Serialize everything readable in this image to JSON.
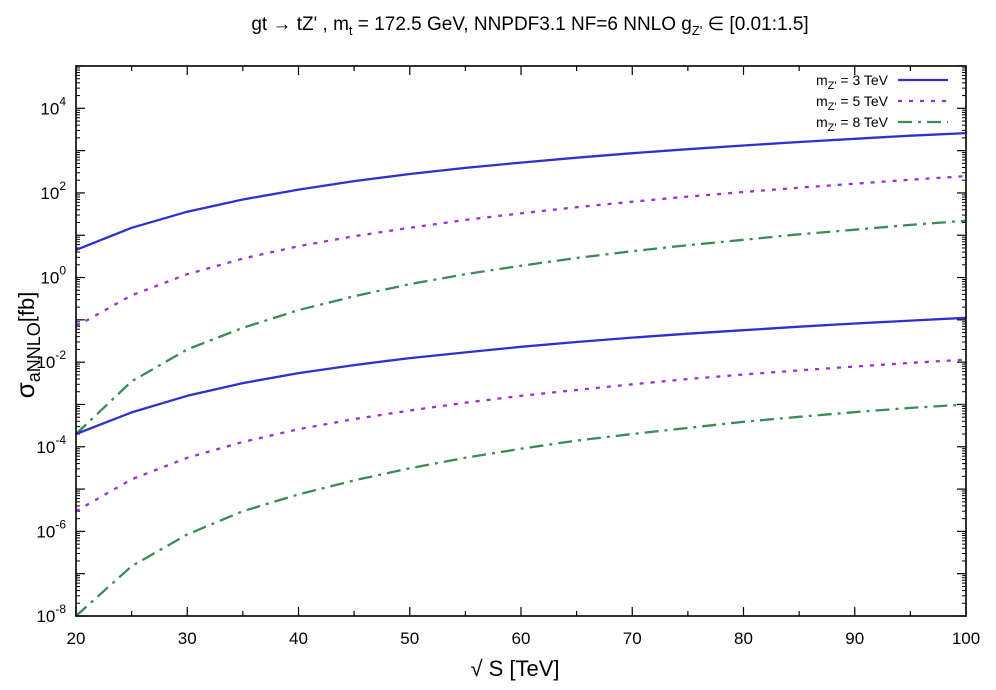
{
  "chart_data": {
    "type": "line",
    "title": "gt → tZ' , m_t = 172.5 GeV, NNPDF3.1 NF=6 NNLO g_Z' ∈ [0.01:1.5]",
    "xlabel": "√S [TeV]",
    "ylabel": "σ_aNNLO [fb]",
    "xlim": [
      20,
      100
    ],
    "ylim": [
      1e-08,
      100000.0
    ],
    "yscale": "log",
    "grid": false,
    "legend_position": "top-right",
    "x": [
      20,
      25,
      30,
      35,
      40,
      45,
      50,
      55,
      60,
      65,
      70,
      75,
      80,
      85,
      90,
      95,
      100
    ],
    "x_ticks": [
      "20",
      "30",
      "40",
      "50",
      "60",
      "70",
      "80",
      "90",
      "100"
    ],
    "y_ticks": [
      "10^-8",
      "10^-6",
      "10^-4",
      "10^-2",
      "10^0",
      "10^2",
      "10^4"
    ],
    "series": [
      {
        "name": "m_Z' = 3 TeV",
        "group": "upper",
        "values": [
          4.5,
          15,
          36,
          70,
          120,
          190,
          280,
          390,
          520,
          680,
          870,
          1080,
          1320,
          1600,
          1900,
          2250,
          2600
        ]
      },
      {
        "name": "m_Z' = 5 TeV",
        "group": "upper",
        "values": [
          0.07,
          0.38,
          1.2,
          2.8,
          5.5,
          9.5,
          15,
          23,
          33,
          46,
          62,
          82,
          105,
          133,
          165,
          205,
          250
        ]
      },
      {
        "name": "m_Z' = 8 TeV",
        "group": "upper",
        "values": [
          0.0002,
          0.0035,
          0.02,
          0.065,
          0.17,
          0.36,
          0.7,
          1.2,
          1.9,
          2.9,
          4.2,
          5.8,
          7.8,
          10.5,
          13.5,
          17.5,
          22
        ]
      },
      {
        "name": "m_Z' = 3 TeV",
        "group": "lower",
        "values": [
          0.0002,
          0.00065,
          0.0016,
          0.0032,
          0.0055,
          0.0085,
          0.0125,
          0.017,
          0.023,
          0.03,
          0.038,
          0.047,
          0.057,
          0.069,
          0.082,
          0.096,
          0.112
        ]
      },
      {
        "name": "m_Z' = 5 TeV",
        "group": "lower",
        "values": [
          3e-06,
          1.7e-05,
          5.5e-05,
          0.00013,
          0.00026,
          0.00045,
          0.00072,
          0.0011,
          0.0016,
          0.0022,
          0.003,
          0.004,
          0.0051,
          0.0064,
          0.0079,
          0.0096,
          0.0115
        ]
      },
      {
        "name": "m_Z' = 8 TeV",
        "group": "lower",
        "values": [
          1e-08,
          1.5e-07,
          8.5e-07,
          3e-06,
          7.5e-06,
          1.6e-05,
          3.1e-05,
          5.5e-05,
          9e-05,
          0.00014,
          0.0002,
          0.00028,
          0.00039,
          0.00051,
          0.00066,
          0.00083,
          0.001
        ]
      }
    ],
    "legend": [
      {
        "label": "m_Z' = 3 TeV",
        "color": "#3030d0",
        "style": "solid"
      },
      {
        "label": "m_Z' = 5 TeV",
        "color": "#9b30d0",
        "style": "dotted"
      },
      {
        "label": "m_Z' = 8 TeV",
        "color": "#3a8a5a",
        "style": "dash-dot"
      }
    ]
  }
}
